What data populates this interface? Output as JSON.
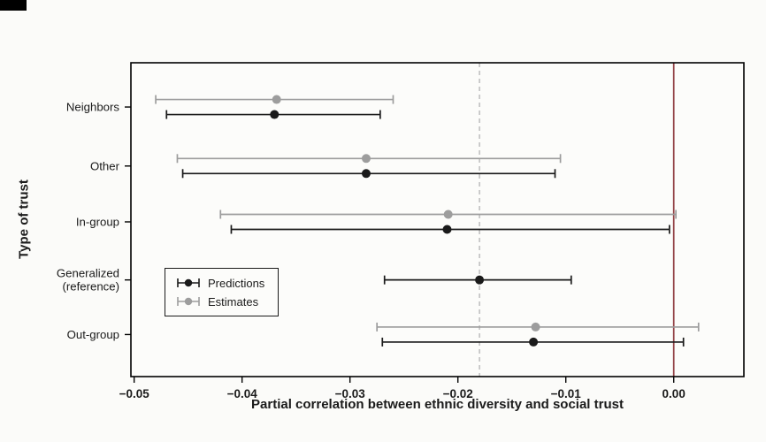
{
  "page": {
    "background": "#fbfbf9",
    "corner_mark_color": "#000000"
  },
  "chart_data": {
    "type": "scatter",
    "subtype": "dot-whisker-forest",
    "title": "",
    "xlabel": "Partial correlation between ethnic diversity and social trust",
    "ylabel": "Type of trust",
    "xlim": [
      -0.0503,
      0.0065
    ],
    "xticks": [
      -0.05,
      -0.04,
      -0.03,
      -0.02,
      -0.01,
      0
    ],
    "xtick_labels": [
      "−0.05",
      "−0.04",
      "−0.03",
      "−0.02",
      "−0.01",
      "0.00"
    ],
    "grid": false,
    "legend_position": "lower-left-inside",
    "categories": [
      "Neighbors",
      "Other",
      "In-group",
      "Generalized (reference)",
      "Out-group"
    ],
    "category_label_lines": [
      [
        "Neighbors"
      ],
      [
        "Other"
      ],
      [
        "In-group"
      ],
      [
        "Generalized",
        "(reference)"
      ],
      [
        "Out-group"
      ]
    ],
    "reference_lines": [
      {
        "name": "zero-reference-line",
        "x": 0,
        "style": "solid",
        "color": "#8e3a3e"
      },
      {
        "name": "generalized-reference-line",
        "x": -0.018,
        "style": "dashed",
        "color": "#b3b3b3"
      }
    ],
    "series": [
      {
        "name": "Predictions",
        "color": "#1a1a1a",
        "points": [
          {
            "category": "Neighbors",
            "x": -0.037,
            "ci_low": -0.047,
            "ci_high": -0.0272
          },
          {
            "category": "Other",
            "x": -0.0285,
            "ci_low": -0.0455,
            "ci_high": -0.011
          },
          {
            "category": "In-group",
            "x": -0.021,
            "ci_low": -0.041,
            "ci_high": -0.0004
          },
          {
            "category": "Generalized (reference)",
            "x": -0.018,
            "ci_low": -0.0268,
            "ci_high": -0.0095
          },
          {
            "category": "Out-group",
            "x": -0.013,
            "ci_low": -0.027,
            "ci_high": 0.0009
          }
        ]
      },
      {
        "name": "Estimates",
        "color": "#9d9d9d",
        "points": [
          {
            "category": "Neighbors",
            "x": -0.0368,
            "ci_low": -0.048,
            "ci_high": -0.026
          },
          {
            "category": "Other",
            "x": -0.0285,
            "ci_low": -0.046,
            "ci_high": -0.0105
          },
          {
            "category": "In-group",
            "x": -0.0209,
            "ci_low": -0.042,
            "ci_high": 0.0002
          },
          {
            "category": "Generalized (reference)",
            "x": null,
            "ci_low": null,
            "ci_high": null
          },
          {
            "category": "Out-group",
            "x": -0.0128,
            "ci_low": -0.0275,
            "ci_high": 0.0023
          }
        ]
      }
    ]
  }
}
